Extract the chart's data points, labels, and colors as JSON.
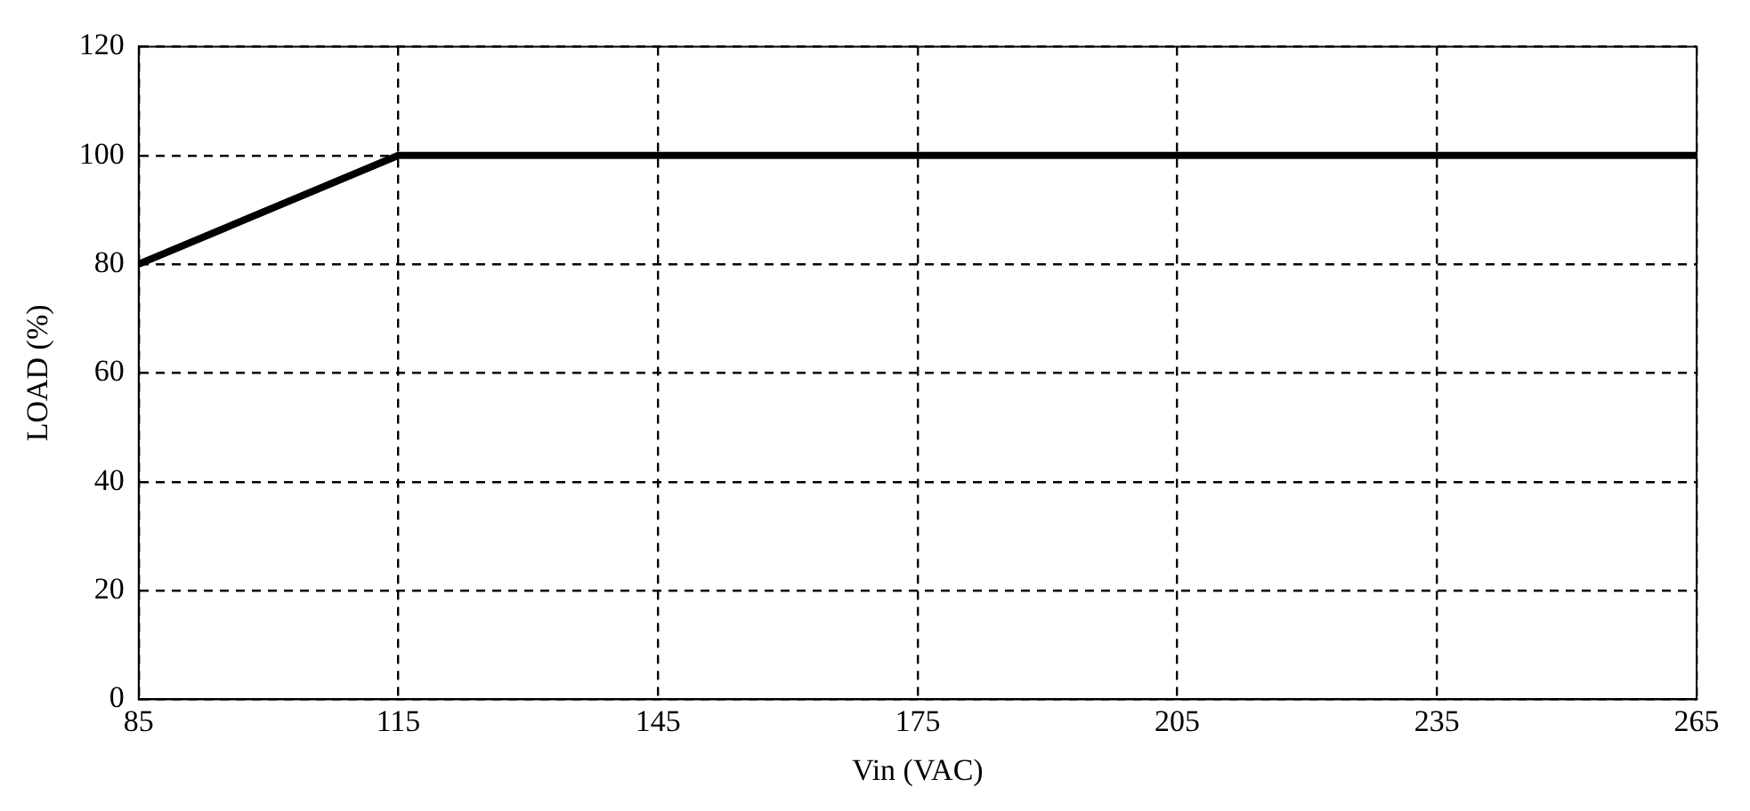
{
  "chart_data": {
    "type": "line",
    "xlabel": "Vin (VAC)",
    "ylabel": "LOAD (%)",
    "x": [
      85,
      115,
      265
    ],
    "series": [
      {
        "color": "#000000",
        "values": [
          80,
          100,
          100
        ]
      }
    ],
    "xlim": [
      85,
      265
    ],
    "xticks": [
      85,
      115,
      145,
      175,
      205,
      235,
      265
    ],
    "ylim": [
      0,
      120
    ],
    "yticks": [
      0,
      20,
      40,
      60,
      80,
      100,
      120
    ],
    "grid": true,
    "legend": false,
    "marker": "none",
    "line_style": "solid"
  }
}
